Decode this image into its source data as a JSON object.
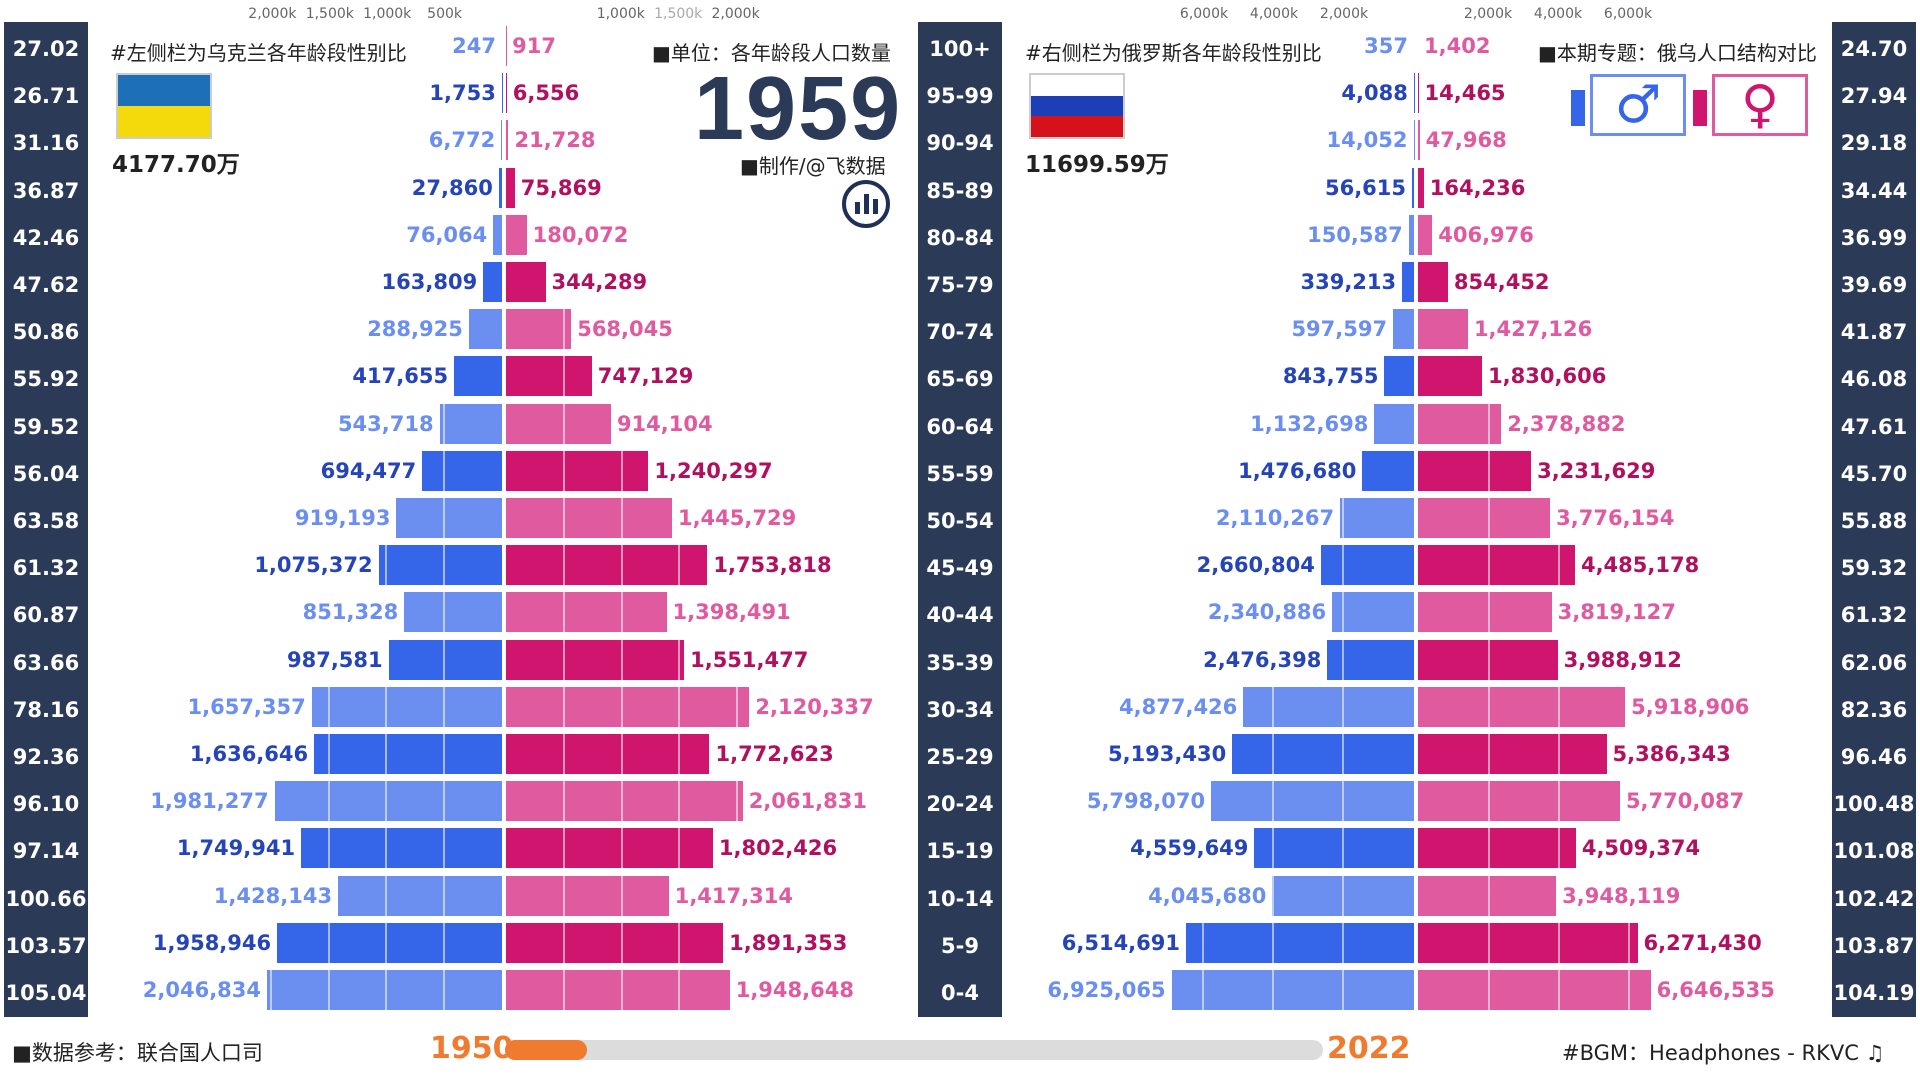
{
  "year": "1959",
  "unit_label": "■单位：各年龄段人口数量",
  "maker_label": "■制作/@飞数据",
  "source_label": "■数据参考：联合国人口司",
  "bgm_label": "#BGM：Headphones - RKVC ♫",
  "progress": {
    "start": "1950",
    "end": "2022",
    "fraction": 0.1
  },
  "ukraine": {
    "note": "#左侧栏为乌克兰各年龄段性别比",
    "total": "4177.70万",
    "flag_colors": [
      "#1d6fb8",
      "#f4d90b"
    ]
  },
  "russia": {
    "note": "#右侧栏为俄罗斯各年龄段性别比",
    "total": "11699.59万",
    "topic": "■本期专题：俄乌人口结构对比",
    "flag_colors": [
      "#ffffff",
      "#1c3fb8",
      "#d5121c"
    ]
  },
  "gender_icons": {
    "male": "male-symbol-icon",
    "female": "female-symbol-icon",
    "male_glyph": "♂",
    "female_glyph": "♀"
  },
  "colors": {
    "male_dark": "#3565e8",
    "male_light": "#6a8ff0",
    "female_dark": "#d0156f",
    "female_light": "#e05aa0",
    "sidebar": "#2b3a57",
    "accent": "#f07b2f"
  },
  "axis": {
    "ua_male_ticks": [
      "2,000k",
      "1,500k",
      "1,000k",
      "500k"
    ],
    "ua_female_ticks": [
      "1,000k",
      "1,500k",
      "2,000k"
    ],
    "ru_male_ticks": [
      "6,000k",
      "4,000k",
      "2,000k"
    ],
    "ru_female_ticks": [
      "2,000k",
      "4,000k",
      "6,000k"
    ]
  },
  "chart_data": [
    {
      "type": "bar",
      "country": "Ukraine",
      "categories": [
        "100+",
        "95-99",
        "90-94",
        "85-89",
        "80-84",
        "75-79",
        "70-74",
        "65-69",
        "60-64",
        "55-59",
        "50-54",
        "45-49",
        "40-44",
        "35-39",
        "30-34",
        "25-29",
        "20-24",
        "15-19",
        "10-14",
        "5-9",
        "0-4"
      ],
      "series": [
        {
          "name": "male",
          "values": [
            247,
            1753,
            6772,
            27860,
            76064,
            163809,
            288925,
            417655,
            543718,
            694477,
            919193,
            1075372,
            851328,
            987581,
            1657357,
            1636646,
            1981277,
            1749941,
            1428143,
            1958946,
            2046834
          ],
          "labels": [
            "247",
            "1,753",
            "6,772",
            "27,860",
            "76,064",
            "163,809",
            "288,925",
            "417,655",
            "543,718",
            "694,477",
            "919,193",
            "1,075,372",
            "851,328",
            "987,581",
            "1,657,357",
            "1,636,646",
            "1,981,277",
            "1,749,941",
            "1,428,143",
            "1,958,946",
            "2,046,834"
          ]
        },
        {
          "name": "female",
          "values": [
            917,
            6556,
            21728,
            75869,
            180072,
            344289,
            568045,
            747129,
            914104,
            1240297,
            1445729,
            1753818,
            1398491,
            1551477,
            2120337,
            1772623,
            2061831,
            1802426,
            1417314,
            1891353,
            1948648
          ],
          "labels": [
            "917",
            "6,556",
            "21,728",
            "75,869",
            "180,072",
            "344,289",
            "568,045",
            "747,129",
            "914,104",
            "1,240,297",
            "1,445,729",
            "1,753,818",
            "1,398,491",
            "1,551,477",
            "2,120,337",
            "1,772,623",
            "2,061,831",
            "1,802,426",
            "1,417,314",
            "1,891,353",
            "1,948,648"
          ]
        }
      ],
      "sex_ratio": [
        "27.02",
        "26.71",
        "31.16",
        "36.87",
        "42.46",
        "47.62",
        "50.86",
        "55.92",
        "59.52",
        "56.04",
        "63.58",
        "61.32",
        "60.87",
        "63.66",
        "78.16",
        "92.36",
        "96.10",
        "97.14",
        "100.66",
        "103.57",
        "105.04"
      ],
      "xlim": [
        0,
        2300000
      ]
    },
    {
      "type": "bar",
      "country": "Russia",
      "categories": [
        "100+",
        "95-99",
        "90-94",
        "85-89",
        "80-84",
        "75-79",
        "70-74",
        "65-69",
        "60-64",
        "55-59",
        "50-54",
        "45-49",
        "40-44",
        "35-39",
        "30-34",
        "25-29",
        "20-24",
        "15-19",
        "10-14",
        "5-9",
        "0-4"
      ],
      "series": [
        {
          "name": "male",
          "values": [
            357,
            4088,
            14052,
            56615,
            150587,
            339213,
            597597,
            843755,
            1132698,
            1476680,
            2110267,
            2660804,
            2340886,
            2476398,
            4877426,
            5193430,
            5798070,
            4559649,
            4045680,
            6514691,
            6925065
          ],
          "labels": [
            "357",
            "4,088",
            "14,052",
            "56,615",
            "150,587",
            "339,213",
            "597,597",
            "843,755",
            "1,132,698",
            "1,476,680",
            "2,110,267",
            "2,660,804",
            "2,340,886",
            "2,476,398",
            "4,877,426",
            "5,193,430",
            "5,798,070",
            "4,559,649",
            "4,045,680",
            "6,514,691",
            "6,925,065"
          ]
        },
        {
          "name": "female",
          "values": [
            1402,
            14465,
            47968,
            164236,
            406976,
            854452,
            1427126,
            1830606,
            2378882,
            3231629,
            3776154,
            4485178,
            3819127,
            3988912,
            5918906,
            5386343,
            5770087,
            4509374,
            3948119,
            6271430,
            6646535
          ],
          "labels": [
            "1,402",
            "14,465",
            "47,968",
            "164,236",
            "406,976",
            "854,452",
            "1,427,126",
            "1,830,606",
            "2,378,882",
            "3,231,629",
            "3,776,154",
            "4,485,178",
            "3,819,127",
            "3,988,912",
            "5,918,906",
            "5,386,343",
            "5,770,087",
            "4,509,374",
            "3,948,119",
            "6,271,430",
            "6,646,535"
          ]
        }
      ],
      "sex_ratio": [
        "24.70",
        "27.94",
        "29.18",
        "34.44",
        "36.99",
        "39.69",
        "41.87",
        "46.08",
        "47.61",
        "45.70",
        "55.88",
        "59.32",
        "61.32",
        "62.06",
        "82.36",
        "96.46",
        "100.48",
        "101.08",
        "102.42",
        "103.87",
        "104.19"
      ],
      "xlim": [
        0,
        8000000
      ]
    }
  ]
}
